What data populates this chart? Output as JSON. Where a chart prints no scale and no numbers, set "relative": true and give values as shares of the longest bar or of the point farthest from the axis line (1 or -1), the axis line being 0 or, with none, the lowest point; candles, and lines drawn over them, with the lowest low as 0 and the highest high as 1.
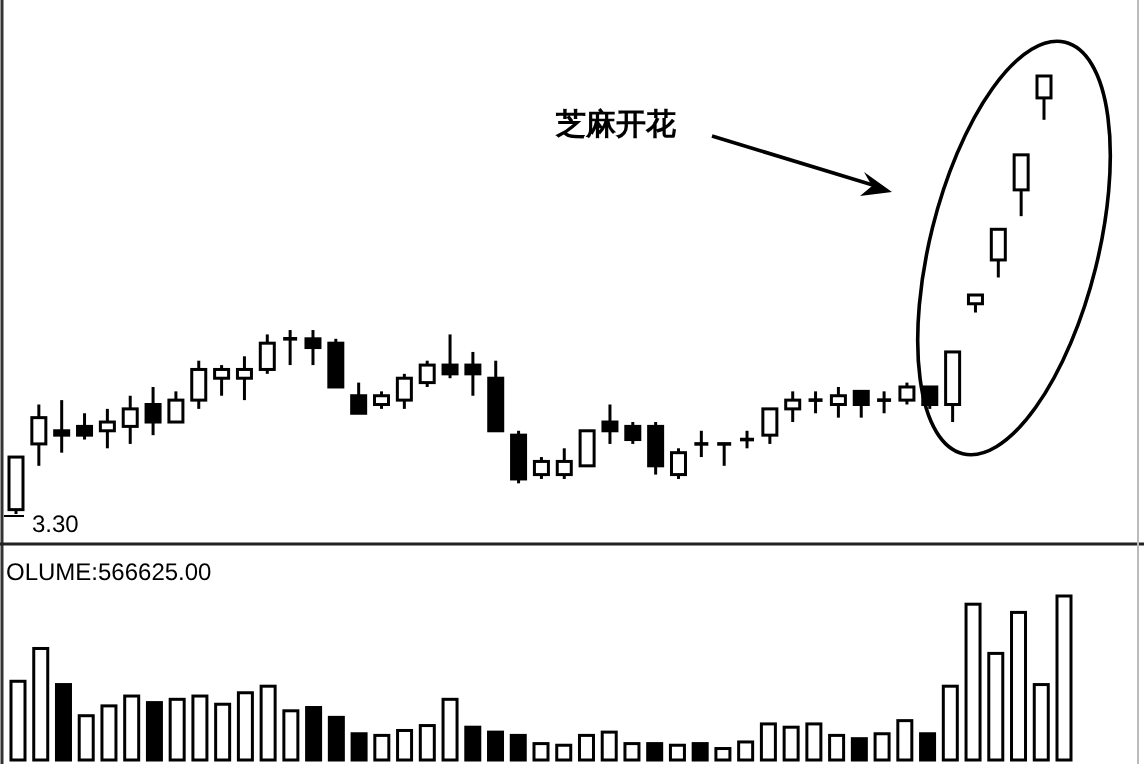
{
  "chart_data": [
    {
      "type": "candlestick",
      "relative": true,
      "categories": [
        null,
        null,
        null,
        null,
        null,
        null,
        null,
        null,
        null,
        null,
        null,
        null,
        null,
        null,
        null,
        null,
        null,
        null,
        null,
        null,
        null,
        null,
        null,
        null,
        null,
        null,
        null,
        null,
        null,
        null,
        null,
        null,
        null,
        null,
        null,
        null,
        null,
        null,
        null,
        null,
        null,
        null,
        null,
        null,
        null,
        null
      ],
      "ohlc": [
        [
          0.01,
          0.13,
          0,
          0.13
        ],
        [
          0.16,
          0.25,
          0.11,
          0.22
        ],
        [
          0.19,
          0.26,
          0.14,
          0.18
        ],
        [
          0.2,
          0.23,
          0.17,
          0.18
        ],
        [
          0.19,
          0.24,
          0.15,
          0.21
        ],
        [
          0.2,
          0.27,
          0.16,
          0.24
        ],
        [
          0.25,
          0.29,
          0.18,
          0.21
        ],
        [
          0.21,
          0.28,
          0.21,
          0.26
        ],
        [
          0.26,
          0.35,
          0.24,
          0.33
        ],
        [
          0.31,
          0.34,
          0.27,
          0.33
        ],
        [
          0.31,
          0.36,
          0.26,
          0.33
        ],
        [
          0.33,
          0.41,
          0.32,
          0.39
        ],
        [
          0.4,
          0.42,
          0.34,
          0.4
        ],
        [
          0.4,
          0.42,
          0.34,
          0.38
        ],
        [
          0.39,
          0.4,
          0.29,
          0.29
        ],
        [
          0.27,
          0.3,
          0.23,
          0.23
        ],
        [
          0.25,
          0.28,
          0.24,
          0.27
        ],
        [
          0.26,
          0.32,
          0.24,
          0.31
        ],
        [
          0.3,
          0.35,
          0.29,
          0.34
        ],
        [
          0.34,
          0.41,
          0.31,
          0.32
        ],
        [
          0.34,
          0.37,
          0.27,
          0.32
        ],
        [
          0.31,
          0.35,
          0.19,
          0.19
        ],
        [
          0.18,
          0.19,
          0.07,
          0.08
        ],
        [
          0.09,
          0.13,
          0.08,
          0.12
        ],
        [
          0.09,
          0.15,
          0.08,
          0.12
        ],
        [
          0.11,
          0.19,
          0.11,
          0.19
        ],
        [
          0.21,
          0.25,
          0.16,
          0.19
        ],
        [
          0.2,
          0.21,
          0.16,
          0.17
        ],
        [
          0.2,
          0.21,
          0.09,
          0.11
        ],
        [
          0.09,
          0.15,
          0.08,
          0.14
        ],
        [
          0.16,
          0.19,
          0.13,
          0.16
        ],
        [
          0.16,
          0.16,
          0.11,
          0.16
        ],
        [
          0.17,
          0.19,
          0.15,
          0.17
        ],
        [
          0.18,
          0.24,
          0.16,
          0.24
        ],
        [
          0.24,
          0.28,
          0.21,
          0.26
        ],
        [
          0.26,
          0.28,
          0.23,
          0.26
        ],
        [
          0.25,
          0.29,
          0.22,
          0.27
        ],
        [
          0.28,
          0.28,
          0.22,
          0.25
        ],
        [
          0.26,
          0.28,
          0.23,
          0.26
        ],
        [
          0.26,
          0.3,
          0.25,
          0.29
        ],
        [
          0.29,
          0.29,
          0.24,
          0.25
        ],
        [
          0.25,
          0.37,
          0.21,
          0.37
        ],
        [
          0.48,
          0.5,
          0.46,
          0.5
        ],
        [
          0.58,
          0.65,
          0.54,
          0.65
        ],
        [
          0.74,
          0.82,
          0.68,
          0.82
        ],
        [
          0.95,
          1,
          0.9,
          1
        ]
      ],
      "annotations": [
        "芝麻开花",
        "3.30"
      ]
    },
    {
      "type": "bar",
      "relative": true,
      "title": "OLUME:566625.00",
      "categories": [
        null,
        null,
        null,
        null,
        null,
        null,
        null,
        null,
        null,
        null,
        null,
        null,
        null,
        null,
        null,
        null,
        null,
        null,
        null,
        null,
        null,
        null,
        null,
        null,
        null,
        null,
        null,
        null,
        null,
        null,
        null,
        null,
        null,
        null,
        null,
        null,
        null,
        null,
        null,
        null,
        null,
        null,
        null,
        null,
        null,
        null,
        null
      ],
      "values": [
        0.48,
        0.68,
        0.46,
        0.27,
        0.33,
        0.39,
        0.35,
        0.37,
        0.39,
        0.34,
        0.41,
        0.45,
        0.3,
        0.32,
        0.26,
        0.16,
        0.15,
        0.18,
        0.21,
        0.37,
        0.2,
        0.17,
        0.15,
        0.1,
        0.09,
        0.15,
        0.17,
        0.1,
        0.1,
        0.09,
        0.1,
        0.07,
        0.11,
        0.22,
        0.2,
        0.22,
        0.15,
        0.13,
        0.16,
        0.24,
        0.16,
        0.45,
        0.95,
        0.65,
        0.9,
        0.46,
        1
      ],
      "colors": [
        "#ffffff",
        "#ffffff",
        "#000000",
        "#ffffff",
        "#ffffff",
        "#ffffff",
        "#000000",
        "#ffffff",
        "#ffffff",
        "#ffffff",
        "#ffffff",
        "#ffffff",
        "#ffffff",
        "#000000",
        "#000000",
        "#000000",
        "#ffffff",
        "#ffffff",
        "#ffffff",
        "#ffffff",
        "#000000",
        "#000000",
        "#000000",
        "#ffffff",
        "#ffffff",
        "#ffffff",
        "#ffffff",
        "#ffffff",
        "#000000",
        "#ffffff",
        "#000000",
        "#ffffff",
        "#ffffff",
        "#ffffff",
        "#ffffff",
        "#ffffff",
        "#ffffff",
        "#000000",
        "#ffffff",
        "#ffffff",
        "#000000",
        "#ffffff",
        "#ffffff",
        "#ffffff",
        "#ffffff",
        "#ffffff",
        "#ffffff"
      ]
    }
  ]
}
